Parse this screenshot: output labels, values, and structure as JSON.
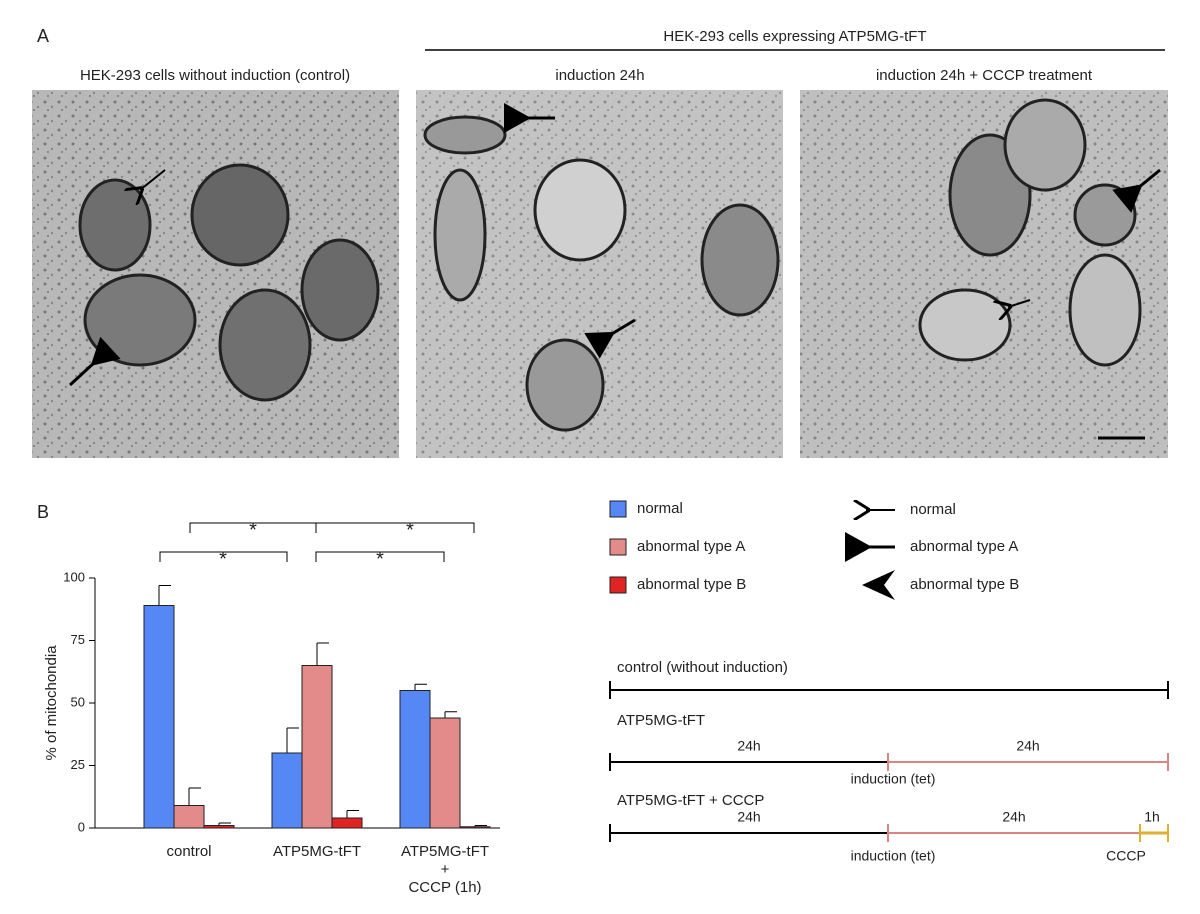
{
  "panel_a": {
    "label": "A",
    "group_title": "HEK-293 cells expressing ATP5MG-tFT",
    "images": [
      {
        "title": "HEK-293 cells without induction (control)"
      },
      {
        "title": "induction 24h"
      },
      {
        "title": "induction 24h + CCCP treatment"
      }
    ]
  },
  "chart_data": {
    "type": "bar",
    "panel_label": "B",
    "ylabel": "% of mitochondia",
    "categories": [
      "control",
      "ATP5MG-tFT",
      "ATP5MG-tFT\n+\nCCCP (1h)"
    ],
    "series": [
      {
        "name": "normal",
        "color": "#5588f5",
        "values": [
          89,
          30,
          55
        ],
        "errors": [
          8,
          10,
          2.5
        ]
      },
      {
        "name": "abnormal type A",
        "color": "#e38a8a",
        "values": [
          9,
          65,
          44
        ],
        "errors": [
          7,
          9,
          2.5
        ]
      },
      {
        "name": "abnormal type B",
        "color": "#e02424",
        "values": [
          1,
          4,
          0.5
        ],
        "errors": [
          1,
          3,
          0.5
        ]
      }
    ],
    "ylim": [
      0,
      100
    ],
    "yticks": [
      0,
      25,
      50,
      75,
      100
    ],
    "grid": false,
    "annotations": [
      "*",
      "*",
      "*",
      "*"
    ]
  },
  "arrow_legend": [
    "normal",
    "abnormal type A",
    "abnormal type B"
  ],
  "timelines": [
    {
      "title": "control (without induction)"
    },
    {
      "title": "ATP5MG-tFT",
      "labels": [
        "24h",
        "24h",
        "induction (tet)"
      ]
    },
    {
      "title": "ATP5MG-tFT + CCCP",
      "labels": [
        "24h",
        "24h",
        "1h",
        "induction (tet)",
        "CCCP"
      ]
    }
  ]
}
